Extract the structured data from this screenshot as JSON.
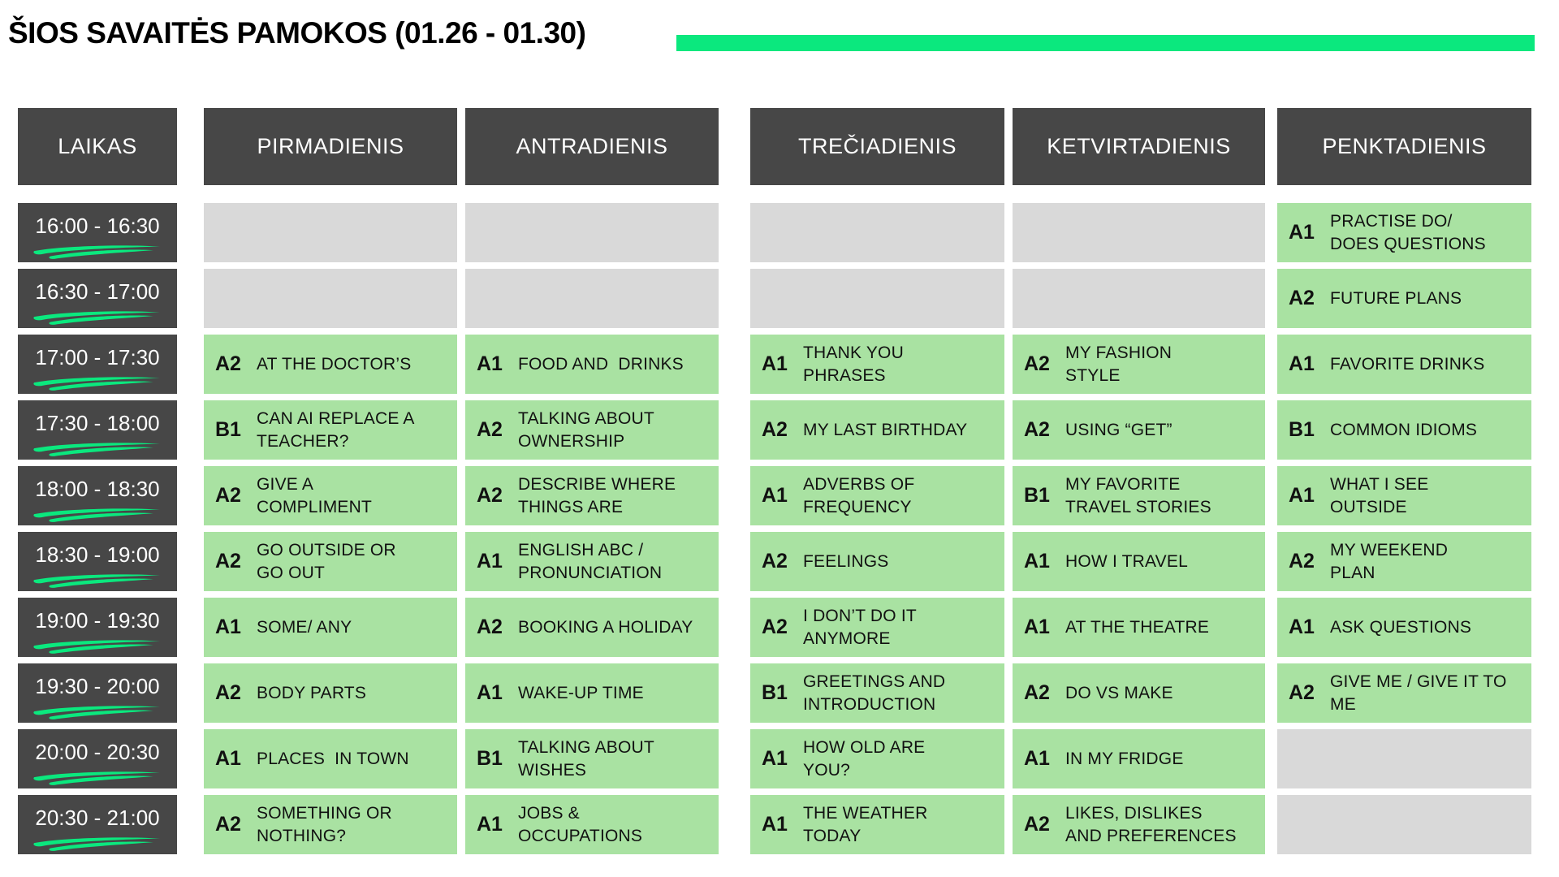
{
  "title": "ŠIOS SAVAITĖS PAMOKOS (01.26 - 01.30)",
  "colors": {
    "accent": "#0be87e",
    "dark": "#474747",
    "cell_green": "#a9e2a2",
    "cell_gray": "#d9d9d9"
  },
  "time_column_label": "LAIKAS",
  "time_slots": [
    "16:00 - 16:30",
    "16:30 - 17:00",
    "17:00 - 17:30",
    "17:30 - 18:00",
    "18:00 - 18:30",
    "18:30 - 19:00",
    "19:00 - 19:30",
    "19:30 - 20:00",
    "20:00 - 20:30",
    "20:30 - 21:00"
  ],
  "days": [
    {
      "label": "PIRMADIENIS",
      "lessons": [
        null,
        null,
        {
          "level": "A2",
          "topic": "AT THE DOCTOR’S"
        },
        {
          "level": "B1",
          "topic": "CAN AI REPLACE A\nTEACHER?"
        },
        {
          "level": "A2",
          "topic": "GIVE A\nCOMPLIMENT"
        },
        {
          "level": "A2",
          "topic": "GO OUTSIDE OR\nGO OUT"
        },
        {
          "level": "A1",
          "topic": "SOME/ ANY"
        },
        {
          "level": "A2",
          "topic": "BODY PARTS"
        },
        {
          "level": "A1",
          "topic": "PLACES  IN TOWN"
        },
        {
          "level": "A2",
          "topic": "SOMETHING OR\nNOTHING?"
        }
      ]
    },
    {
      "label": "ANTRADIENIS",
      "lessons": [
        null,
        null,
        {
          "level": "A1",
          "topic": "FOOD AND  DRINKS"
        },
        {
          "level": "A2",
          "topic": "TALKING ABOUT\nOWNERSHIP"
        },
        {
          "level": "A2",
          "topic": "DESCRIBE WHERE\nTHINGS ARE"
        },
        {
          "level": "A1",
          "topic": "ENGLISH ABC /\nPRONUNCIATION"
        },
        {
          "level": "A2",
          "topic": "BOOKING A HOLIDAY"
        },
        {
          "level": "A1",
          "topic": "WAKE-UP TIME"
        },
        {
          "level": "B1",
          "topic": "TALKING ABOUT\nWISHES"
        },
        {
          "level": "A1",
          "topic": "JOBS &\nOCCUPATIONS"
        }
      ]
    },
    {
      "label": "TREČIADIENIS",
      "lessons": [
        null,
        null,
        {
          "level": "A1",
          "topic": "THANK YOU\nPHRASES"
        },
        {
          "level": "A2",
          "topic": "MY LAST BIRTHDAY"
        },
        {
          "level": "A1",
          "topic": "ADVERBS OF\nFREQUENCY"
        },
        {
          "level": "A2",
          "topic": "FEELINGS"
        },
        {
          "level": "A2",
          "topic": "I DON’T DO IT\nANYMORE"
        },
        {
          "level": "B1",
          "topic": "GREETINGS AND\nINTRODUCTION"
        },
        {
          "level": "A1",
          "topic": "HOW OLD ARE\nYOU?"
        },
        {
          "level": "A1",
          "topic": "THE WEATHER\nTODAY"
        }
      ]
    },
    {
      "label": "KETVIRTADIENIS",
      "lessons": [
        null,
        null,
        {
          "level": "A2",
          "topic": "MY FASHION\nSTYLE"
        },
        {
          "level": "A2",
          "topic": "USING “GET”"
        },
        {
          "level": "B1",
          "topic": "MY FAVORITE\nTRAVEL STORIES"
        },
        {
          "level": "A1",
          "topic": "HOW I TRAVEL"
        },
        {
          "level": "A1",
          "topic": "AT THE THEATRE"
        },
        {
          "level": "A2",
          "topic": "DO VS MAKE"
        },
        {
          "level": "A1",
          "topic": "IN MY FRIDGE"
        },
        {
          "level": "A2",
          "topic": "LIKES, DISLIKES\nAND PREFERENCES"
        }
      ]
    },
    {
      "label": "PENKTADIENIS",
      "lessons": [
        {
          "level": "A1",
          "topic": "PRACTISE DO/\nDOES QUESTIONS"
        },
        {
          "level": "A2",
          "topic": "FUTURE PLANS"
        },
        {
          "level": "A1",
          "topic": "FAVORITE DRINKS"
        },
        {
          "level": "B1",
          "topic": "COMMON IDIOMS"
        },
        {
          "level": "A1",
          "topic": "WHAT I SEE\nOUTSIDE"
        },
        {
          "level": "A2",
          "topic": "MY WEEKEND\nPLAN"
        },
        {
          "level": "A1",
          "topic": "ASK QUESTIONS"
        },
        {
          "level": "A2",
          "topic": "GIVE ME / GIVE IT TO\nME"
        },
        null,
        null
      ]
    }
  ]
}
